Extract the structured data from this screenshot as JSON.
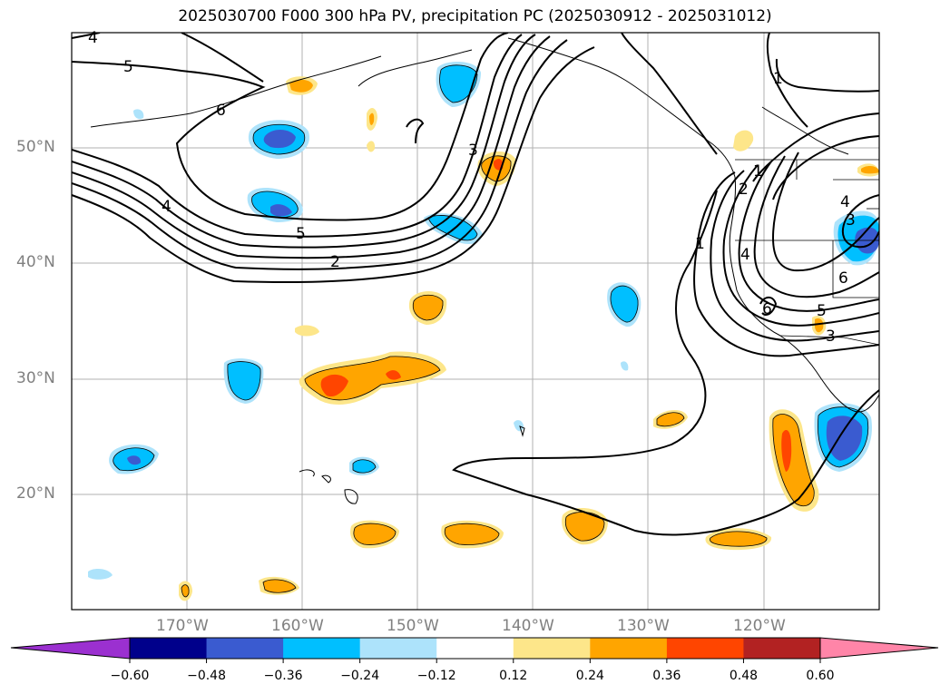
{
  "title": "2025030700 F000 300 hPa PV, precipitation PC (2025030912 - 2025031012)",
  "lat_labels": [
    "50°N",
    "40°N",
    "30°N",
    "20°N"
  ],
  "lon_labels": [
    "170°W",
    "160°W",
    "150°W",
    "140°W",
    "130°W",
    "120°W"
  ],
  "colorbar": {
    "ticks": [
      "−0.60",
      "−0.48",
      "−0.36",
      "−0.24",
      "−0.12",
      "0.12",
      "0.24",
      "0.36",
      "0.48",
      "0.60"
    ],
    "colors": [
      "#9b30d0",
      "#00008b",
      "#3a5bd0",
      "#00bfff",
      "#ade3fb",
      "#ffffff",
      "#fde68a",
      "#ffa500",
      "#ff4500",
      "#b22222",
      "#ff85a8"
    ]
  },
  "contour_labels": [
    "4",
    "5",
    "6",
    "3",
    "4",
    "5",
    "2",
    "1",
    "2",
    "1",
    "4",
    "3",
    "6",
    "1",
    "4",
    "6",
    "5",
    "3"
  ],
  "map": {
    "lon_range": [
      -180,
      -110
    ],
    "lat_range": [
      10,
      60
    ],
    "grid": true
  }
}
